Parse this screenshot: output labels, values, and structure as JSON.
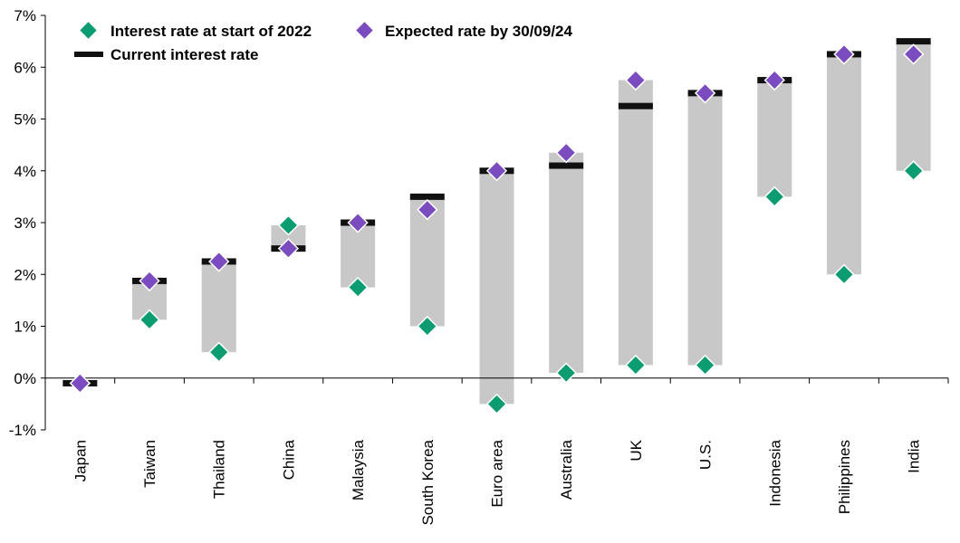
{
  "chart_data": {
    "type": "floating-range-with-markers",
    "title": "",
    "xlabel": "",
    "ylabel": "",
    "ylim": [
      -1,
      7
    ],
    "y_ticks": [
      -1,
      0,
      1,
      2,
      3,
      4,
      5,
      6,
      7
    ],
    "y_tick_labels": [
      "-1%",
      "0%",
      "1%",
      "2%",
      "3%",
      "4%",
      "5%",
      "6%",
      "7%"
    ],
    "grid": false,
    "legend_position": "top-left",
    "categories": [
      "Japan",
      "Taiwan",
      "Thailand",
      "China",
      "Malaysia",
      "South Korea",
      "Euro area",
      "Australia",
      "UK",
      "U.S.",
      "Indonesia",
      "Philippines",
      "India"
    ],
    "series": [
      {
        "name": "Interest rate at start of 2022",
        "marker": "diamond",
        "color": "#0B9C71",
        "values": [
          -0.1,
          1.125,
          0.5,
          2.95,
          1.75,
          1.0,
          -0.5,
          0.1,
          0.25,
          0.25,
          3.5,
          2.0,
          4.0
        ]
      },
      {
        "name": "Expected rate by 30/09/24",
        "marker": "diamond",
        "color": "#7B4CC0",
        "values": [
          -0.1,
          1.875,
          2.25,
          2.5,
          3.0,
          3.25,
          4.0,
          4.35,
          5.75,
          5.5,
          5.75,
          6.25,
          6.25
        ]
      },
      {
        "name": "Current interest rate",
        "marker": "dash",
        "color": "#111111",
        "values": [
          -0.1,
          1.875,
          2.25,
          2.5,
          3.0,
          3.5,
          4.0,
          4.1,
          5.25,
          5.5,
          5.75,
          6.25,
          6.5
        ]
      }
    ],
    "range_bar_color": "#C8C8C9"
  },
  "legend": {
    "items": [
      {
        "label": "Interest rate at start of 2022",
        "color": "#0B9C71",
        "marker": "diamond"
      },
      {
        "label": "Expected rate by 30/09/24",
        "color": "#7B4CC0",
        "marker": "diamond"
      },
      {
        "label": "Current interest rate",
        "color": "#111111",
        "marker": "dash"
      }
    ]
  }
}
